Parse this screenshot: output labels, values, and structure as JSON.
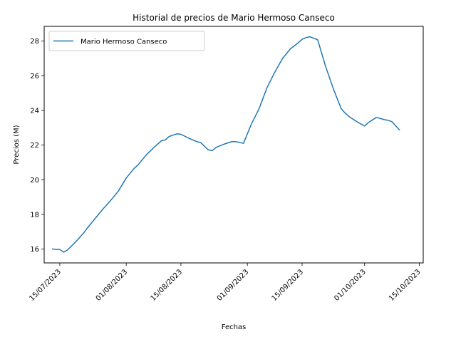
{
  "chart_data": {
    "type": "line",
    "title": "Historial de precios de Mario Hermoso Canseco",
    "xlabel": "Fechas",
    "ylabel": "Precios (M)",
    "x_ticks": [
      "15/07/2023",
      "01/08/2023",
      "15/08/2023",
      "01/09/2023",
      "15/09/2023",
      "01/10/2023",
      "15/10/2023"
    ],
    "y_ticks": [
      16,
      18,
      20,
      22,
      24,
      26,
      28
    ],
    "ylim": [
      15.2,
      28.85
    ],
    "xlim": [
      "2023-07-11",
      "2023-10-16"
    ],
    "grid": false,
    "legend": "top-left",
    "color": "#1f77b4",
    "series": [
      {
        "name": "Mario Hermoso Canseco",
        "x": [
          "2023-07-13",
          "2023-07-15",
          "2023-07-16",
          "2023-07-17",
          "2023-07-19",
          "2023-07-21",
          "2023-07-22",
          "2023-07-24",
          "2023-07-26",
          "2023-07-28",
          "2023-07-30",
          "2023-08-01",
          "2023-08-03",
          "2023-08-04",
          "2023-08-06",
          "2023-08-08",
          "2023-08-10",
          "2023-08-11",
          "2023-08-12",
          "2023-08-14",
          "2023-08-15",
          "2023-08-17",
          "2023-08-19",
          "2023-08-20",
          "2023-08-22",
          "2023-08-23",
          "2023-08-24",
          "2023-08-26",
          "2023-08-28",
          "2023-08-29",
          "2023-08-31",
          "2023-09-02",
          "2023-09-04",
          "2023-09-06",
          "2023-09-08",
          "2023-09-10",
          "2023-09-12",
          "2023-09-14",
          "2023-09-15",
          "2023-09-16",
          "2023-09-17",
          "2023-09-19",
          "2023-09-21",
          "2023-09-23",
          "2023-09-25",
          "2023-09-26",
          "2023-09-27",
          "2023-09-29",
          "2023-10-01",
          "2023-10-02",
          "2023-10-04",
          "2023-10-06",
          "2023-10-07",
          "2023-10-08",
          "2023-10-10"
        ],
        "y": [
          16.0,
          15.97,
          15.82,
          15.95,
          16.4,
          16.9,
          17.2,
          17.75,
          18.3,
          18.8,
          19.35,
          20.1,
          20.65,
          20.85,
          21.4,
          21.85,
          22.25,
          22.3,
          22.5,
          22.65,
          22.62,
          22.4,
          22.2,
          22.15,
          21.72,
          21.68,
          21.87,
          22.05,
          22.2,
          22.2,
          22.1,
          23.2,
          24.1,
          25.3,
          26.2,
          27.0,
          27.55,
          27.9,
          28.1,
          28.2,
          28.25,
          28.07,
          26.55,
          25.25,
          24.1,
          23.85,
          23.65,
          23.35,
          23.1,
          23.3,
          23.6,
          23.47,
          23.43,
          23.35,
          22.85
        ]
      }
    ]
  }
}
